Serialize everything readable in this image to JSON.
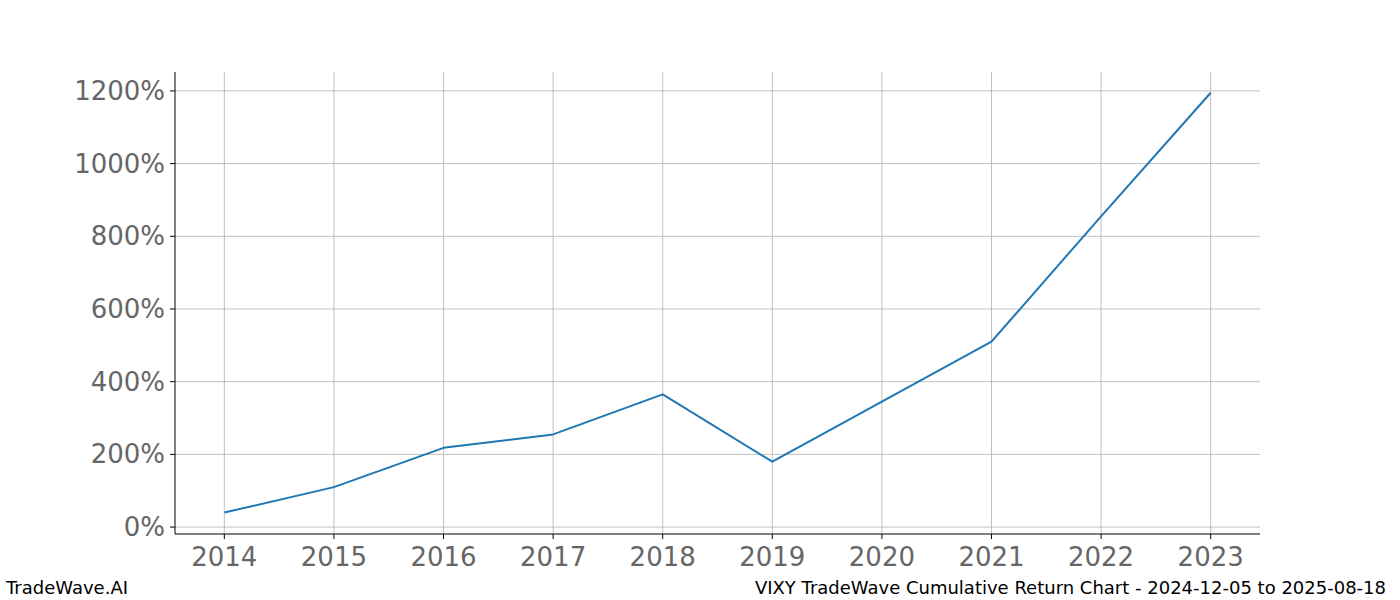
{
  "chart_data": {
    "type": "line",
    "title": "VIXY TradeWave Cumulative Return Chart - 2024-12-05 to 2025-08-18",
    "annotations": [
      "TradeWave.AI"
    ],
    "x": [
      2014,
      2015,
      2016,
      2017,
      2018,
      2019,
      2020,
      2021,
      2022,
      2023
    ],
    "series": [
      {
        "name": "VIXY",
        "color": "#1f77b4",
        "values": [
          40,
          110,
          218,
          255,
          365,
          180,
          345,
          510,
          855,
          1195
        ]
      }
    ],
    "xlim": [
      2013.55,
      2023.45
    ],
    "xticks": [
      2014,
      2015,
      2016,
      2017,
      2018,
      2019,
      2020,
      2021,
      2022,
      2023
    ],
    "ylim": [
      -19,
      1252
    ],
    "yticks": [
      {
        "value": 0,
        "label": "0%"
      },
      {
        "value": 200,
        "label": "200%"
      },
      {
        "value": 400,
        "label": "400%"
      },
      {
        "value": 600,
        "label": "600%"
      },
      {
        "value": 800,
        "label": "800%"
      },
      {
        "value": 1000,
        "label": "1000%"
      },
      {
        "value": 1200,
        "label": "1200%"
      }
    ],
    "grid": true
  }
}
